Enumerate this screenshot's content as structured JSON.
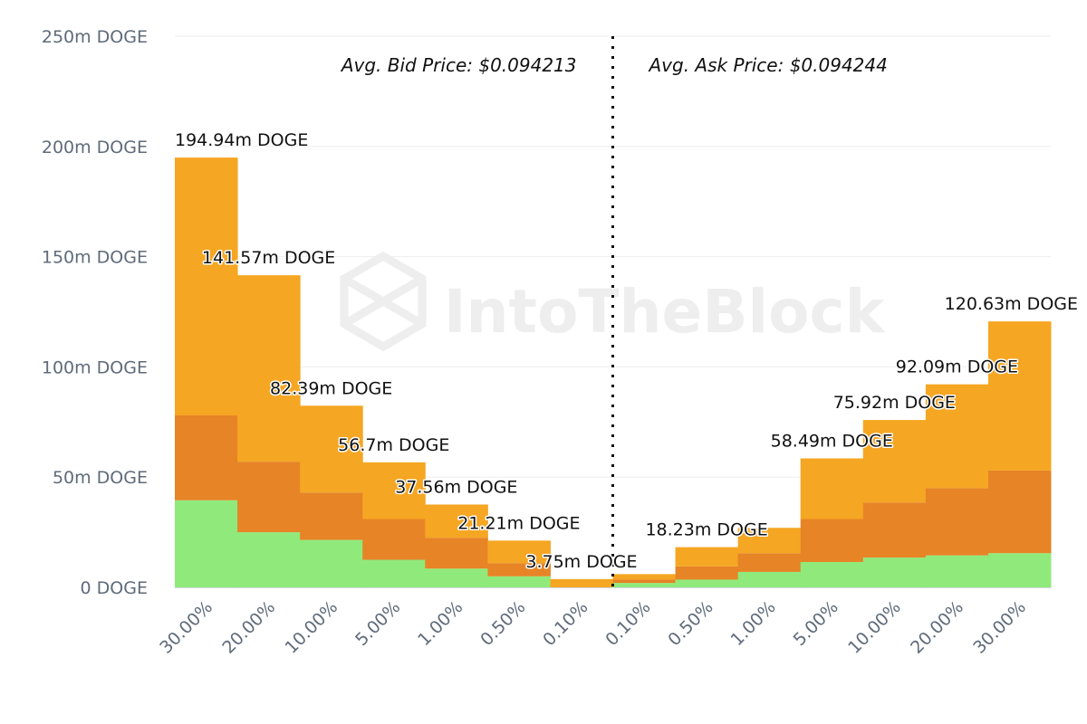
{
  "chart_data": {
    "type": "bar",
    "stacked": true,
    "watermark": "IntoTheBlock",
    "avg_bid_label": "Avg. Bid Price: $0.094213",
    "avg_ask_label": "Avg. Ask Price: $0.094244",
    "y_unit": "DOGE",
    "ylim": [
      0,
      250000000
    ],
    "yticks": [
      {
        "value": 0,
        "label": "0 DOGE"
      },
      {
        "value": 50000000,
        "label": "50m DOGE"
      },
      {
        "value": 100000000,
        "label": "100m DOGE"
      },
      {
        "value": 150000000,
        "label": "150m DOGE"
      },
      {
        "value": 200000000,
        "label": "200m DOGE"
      },
      {
        "value": 250000000,
        "label": "250m DOGE"
      }
    ],
    "grid": true,
    "categories": [
      "30.00%",
      "20.00%",
      "10.00%",
      "5.00%",
      "1.00%",
      "0.50%",
      "0.10%",
      "0.10%",
      "0.50%",
      "1.00%",
      "5.00%",
      "10.00%",
      "20.00%",
      "30.00%"
    ],
    "sides": [
      "bid",
      "bid",
      "bid",
      "bid",
      "bid",
      "bid",
      "bid",
      "ask",
      "ask",
      "ask",
      "ask",
      "ask",
      "ask",
      "ask"
    ],
    "totals_labels": [
      "194.94m DOGE",
      "141.57m DOGE",
      "82.39m DOGE",
      "56.7m DOGE",
      "37.56m DOGE",
      "21.21m DOGE",
      "3.75m DOGE",
      "",
      "18.23m DOGE",
      "",
      "58.49m DOGE",
      "75.92m DOGE",
      "92.09m DOGE",
      "120.63m DOGE"
    ],
    "series": [
      {
        "color": "#90ea7b",
        "values": [
          39500000,
          25000000,
          21500000,
          12500000,
          8500000,
          5000000,
          0,
          2000000,
          3500000,
          7000000,
          11500000,
          13500000,
          14500000,
          15500000
        ]
      },
      {
        "color": "#e68426",
        "values": [
          38500000,
          32000000,
          21500000,
          18500000,
          14000000,
          6000000,
          0,
          1500000,
          6000000,
          8500000,
          19500000,
          25000000,
          30500000,
          37500000
        ]
      },
      {
        "color": "#f5a623",
        "values": [
          116940000,
          84570000,
          39390000,
          25700000,
          15060000,
          10210000,
          3750000,
          2500000,
          8730000,
          11500000,
          27490000,
          37420000,
          47090000,
          67630000
        ]
      }
    ]
  }
}
